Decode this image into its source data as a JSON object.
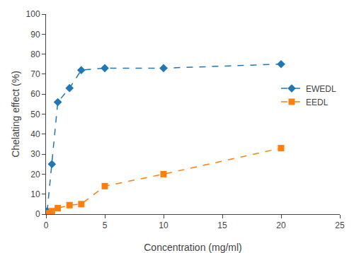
{
  "chart_data": {
    "type": "line",
    "xlabel": "Concentration (mg/ml)",
    "ylabel": "Chelating effect (%)",
    "x": [
      0.1,
      0.5,
      1.0,
      2.0,
      3.0,
      5.0,
      10.0,
      20.0
    ],
    "series": [
      {
        "name": "EWEDL",
        "marker": "diamond",
        "line_style": "dashed",
        "values": [
          1.5,
          25.0,
          56.0,
          63.0,
          72.0,
          73.0,
          73.0,
          75.0
        ]
      },
      {
        "name": "EEDL",
        "marker": "square",
        "line_style": "dashed",
        "values": [
          0.5,
          1.5,
          3.0,
          4.5,
          5.0,
          14.0,
          20.0,
          33.0
        ]
      }
    ],
    "xlim": [
      0,
      25
    ],
    "ylim": [
      0,
      100
    ],
    "xticks": [
      0,
      5,
      10,
      15,
      20,
      25
    ],
    "yticks": [
      0,
      10,
      20,
      30,
      40,
      50,
      60,
      70,
      80,
      90,
      100
    ],
    "grid": false,
    "legend": "upper right"
  }
}
